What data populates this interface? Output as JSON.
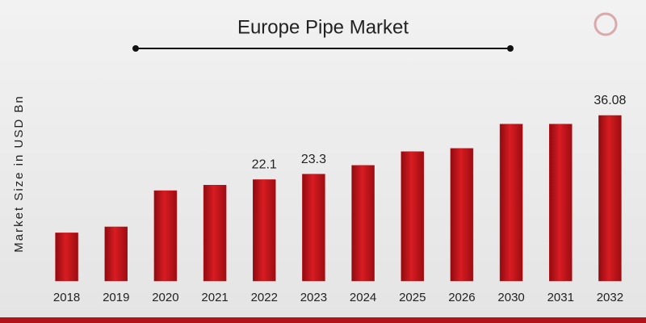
{
  "chart_data": {
    "type": "bar",
    "title": "Europe Pipe Market",
    "y_label": "Market Size in USD Bn",
    "categories": [
      "2018",
      "2019",
      "2020",
      "2021",
      "2022",
      "2023",
      "2024",
      "2025",
      "2026",
      "2030",
      "2031",
      "2032"
    ],
    "values": [
      10.5,
      11.8,
      19.7,
      20.9,
      22.1,
      23.3,
      25.2,
      28.2,
      28.9,
      34.2,
      34.2,
      36.08
    ],
    "value_labels": [
      null,
      null,
      null,
      null,
      "22.1",
      "23.3",
      null,
      null,
      null,
      null,
      null,
      "36.08"
    ],
    "color": "#c4161c"
  }
}
